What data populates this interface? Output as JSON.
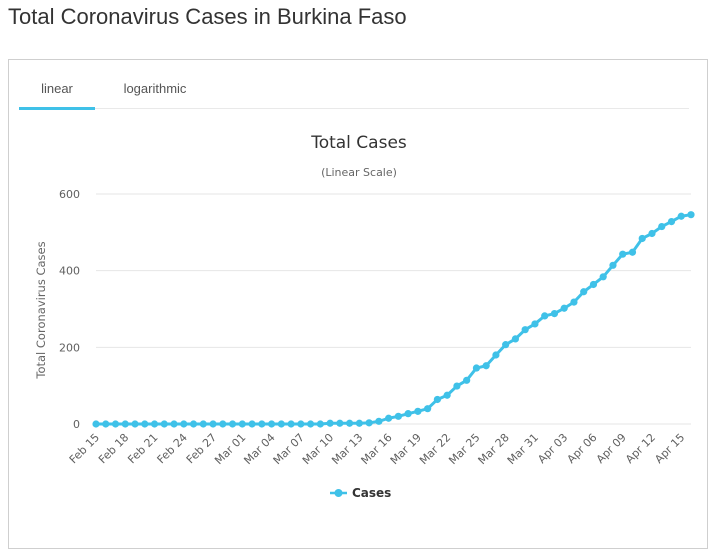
{
  "page": {
    "title": "Total Coronavirus Cases in Burkina Faso"
  },
  "tabs": [
    {
      "label": "linear",
      "active": true
    },
    {
      "label": "logarithmic",
      "active": false
    }
  ],
  "colors": {
    "series": "#3fc1e8",
    "grid": "#e6e6e6",
    "text": "#333333"
  },
  "chart_data": {
    "type": "line",
    "title": "Total Cases",
    "subtitle": "(Linear Scale)",
    "ylabel": "Total Coronavirus Cases",
    "ylim": [
      0,
      600
    ],
    "yticks": [
      0,
      200,
      400,
      600
    ],
    "grid": true,
    "legend": "bottom-center",
    "xtick_labels": [
      "Feb 15",
      "Feb 18",
      "Feb 21",
      "Feb 24",
      "Feb 27",
      "Mar 01",
      "Mar 04",
      "Mar 07",
      "Mar 10",
      "Mar 13",
      "Mar 16",
      "Mar 19",
      "Mar 22",
      "Mar 25",
      "Mar 28",
      "Mar 31",
      "Apr 03",
      "Apr 06",
      "Apr 09",
      "Apr 12",
      "Apr 15"
    ],
    "x": [
      "Feb 15",
      "Feb 16",
      "Feb 17",
      "Feb 18",
      "Feb 19",
      "Feb 20",
      "Feb 21",
      "Feb 22",
      "Feb 23",
      "Feb 24",
      "Feb 25",
      "Feb 26",
      "Feb 27",
      "Feb 28",
      "Feb 29",
      "Mar 01",
      "Mar 02",
      "Mar 03",
      "Mar 04",
      "Mar 05",
      "Mar 06",
      "Mar 07",
      "Mar 08",
      "Mar 09",
      "Mar 10",
      "Mar 11",
      "Mar 12",
      "Mar 13",
      "Mar 14",
      "Mar 15",
      "Mar 16",
      "Mar 17",
      "Mar 18",
      "Mar 19",
      "Mar 20",
      "Mar 21",
      "Mar 22",
      "Mar 23",
      "Mar 24",
      "Mar 25",
      "Mar 26",
      "Mar 27",
      "Mar 28",
      "Mar 29",
      "Mar 30",
      "Mar 31",
      "Apr 01",
      "Apr 02",
      "Apr 03",
      "Apr 04",
      "Apr 05",
      "Apr 06",
      "Apr 07",
      "Apr 08",
      "Apr 09",
      "Apr 10",
      "Apr 11",
      "Apr 12",
      "Apr 13",
      "Apr 14",
      "Apr 15",
      "Apr 16"
    ],
    "series": [
      {
        "name": "Cases",
        "values": [
          0,
          0,
          0,
          0,
          0,
          0,
          0,
          0,
          0,
          0,
          0,
          0,
          0,
          0,
          0,
          0,
          0,
          0,
          0,
          0,
          0,
          0,
          0,
          0,
          2,
          2,
          2,
          2,
          3,
          7,
          15,
          20,
          27,
          33,
          40,
          64,
          75,
          99,
          114,
          146,
          152,
          180,
          207,
          222,
          246,
          261,
          282,
          288,
          302,
          318,
          345,
          364,
          384,
          414,
          443,
          448,
          484,
          497,
          515,
          528,
          542,
          546
        ]
      }
    ]
  }
}
